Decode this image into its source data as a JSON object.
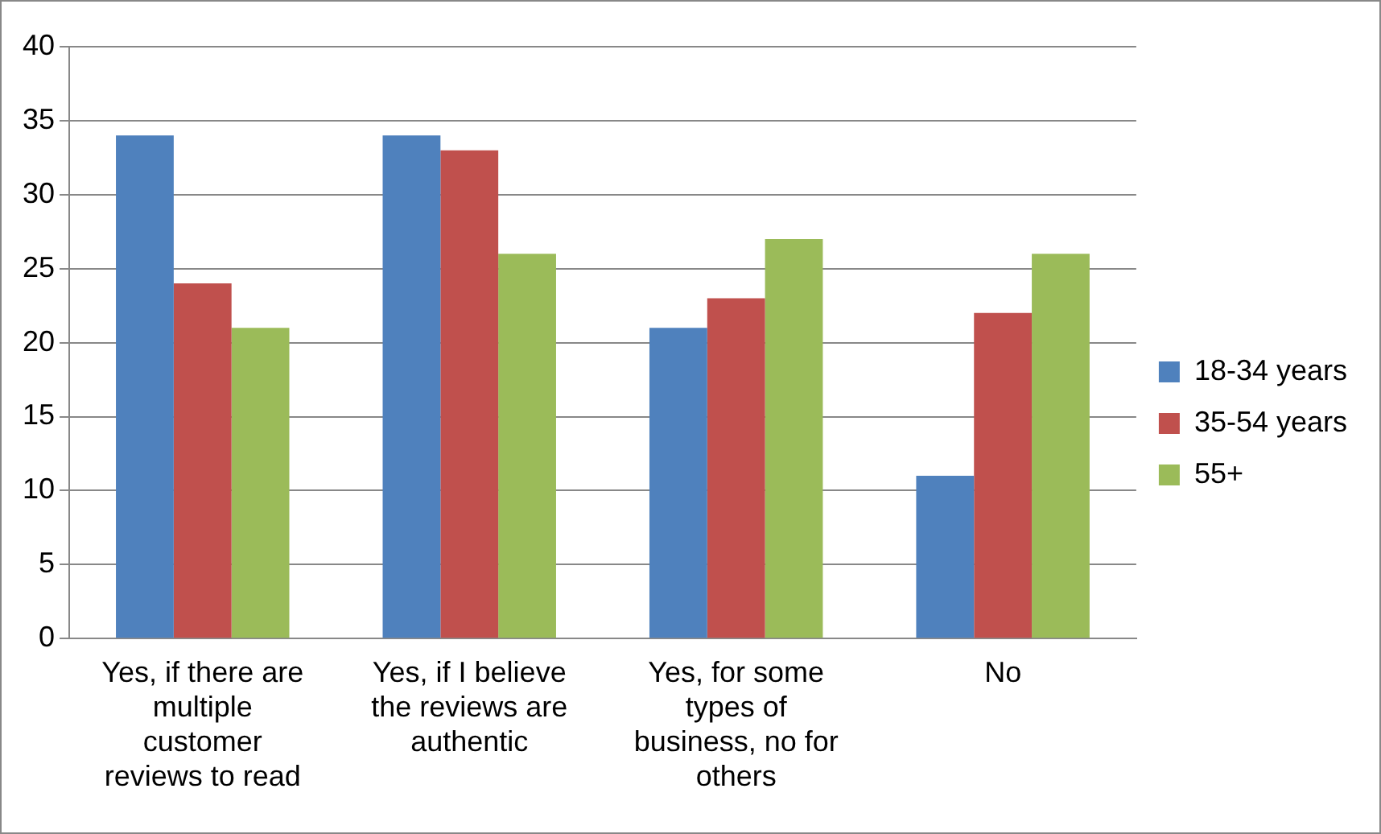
{
  "chart_data": {
    "type": "bar",
    "categories": [
      "Yes, if there are multiple customer reviews to read",
      "Yes, if I believe the reviews are authentic",
      "Yes, for some types of business, no for others",
      "No"
    ],
    "series": [
      {
        "name": "18-34 years",
        "color": "#4f81bd",
        "values": [
          34,
          34,
          21,
          11
        ]
      },
      {
        "name": "35-54 years",
        "color": "#c0504d",
        "values": [
          24,
          33,
          23,
          22
        ]
      },
      {
        "name": "55+",
        "color": "#9bbb59",
        "values": [
          21,
          26,
          27,
          26
        ]
      }
    ],
    "ylim": [
      0,
      40
    ],
    "yticks": [
      0,
      5,
      10,
      15,
      20,
      25,
      30,
      35,
      40
    ],
    "grid": "y",
    "legend": "right"
  }
}
